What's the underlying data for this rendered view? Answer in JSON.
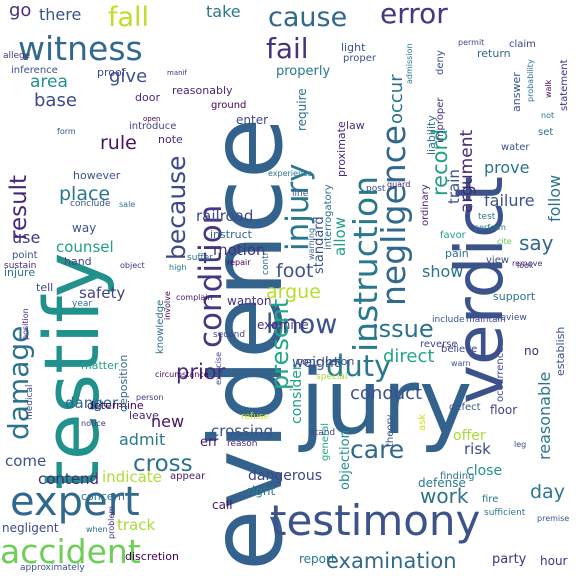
{
  "words": [
    {
      "text": "evidence",
      "color": "#33638d"
    },
    {
      "text": "jury",
      "color": "#33638d"
    },
    {
      "text": "testify",
      "color": "#21918c"
    },
    {
      "text": "verdict",
      "color": "#3b528b"
    },
    {
      "text": "testimony",
      "color": "#3b528b"
    },
    {
      "text": "expert",
      "color": "#31688e"
    },
    {
      "text": "accident",
      "color": "#6ece58"
    },
    {
      "text": "witness",
      "color": "#31688e"
    },
    {
      "text": "instruction",
      "color": "#2a788e"
    },
    {
      "text": "negligence",
      "color": "#31688e"
    },
    {
      "text": "condition",
      "color": "#453781"
    },
    {
      "text": "injury",
      "color": "#2a788e"
    },
    {
      "text": "damage",
      "color": "#2c728e"
    },
    {
      "text": "duty",
      "color": "#2a788e"
    },
    {
      "text": "error",
      "color": "#453781"
    },
    {
      "text": "fail",
      "color": "#46327e"
    },
    {
      "text": "cause",
      "color": "#31688e"
    },
    {
      "text": "fall",
      "color": "#bddf26"
    },
    {
      "text": "know",
      "color": "#3b528b"
    },
    {
      "text": "because",
      "color": "#3e4989"
    },
    {
      "text": "result",
      "color": "#482878"
    },
    {
      "text": "present",
      "color": "#22a884"
    },
    {
      "text": "care",
      "color": "#31688e"
    },
    {
      "text": "cross",
      "color": "#2c728e"
    },
    {
      "text": "issue",
      "color": "#2c728e"
    },
    {
      "text": "examination",
      "color": "#31688e"
    },
    {
      "text": "record",
      "color": "#1fa187"
    },
    {
      "text": "occur",
      "color": "#2c728e"
    },
    {
      "text": "argument",
      "color": "#482878"
    },
    {
      "text": "reasonable",
      "color": "#2a788e"
    },
    {
      "text": "foot",
      "color": "#3b528b"
    },
    {
      "text": "argue",
      "color": "#b5de2b"
    },
    {
      "text": "direct",
      "color": "#22a884"
    },
    {
      "text": "conduct",
      "color": "#3b528b"
    },
    {
      "text": "prior",
      "color": "#482878"
    },
    {
      "text": "work",
      "color": "#2c728e"
    },
    {
      "text": "day",
      "color": "#2a788e"
    },
    {
      "text": "say",
      "color": "#31688e"
    },
    {
      "text": "give",
      "color": "#3b528b"
    },
    {
      "text": "rule",
      "color": "#471365"
    },
    {
      "text": "place",
      "color": "#2a788e"
    },
    {
      "text": "base",
      "color": "#3e4989"
    },
    {
      "text": "area",
      "color": "#21918c"
    },
    {
      "text": "there",
      "color": "#3b528b"
    },
    {
      "text": "go",
      "color": "#46327e"
    },
    {
      "text": "take",
      "color": "#2a788e"
    },
    {
      "text": "show",
      "color": "#2c728e"
    },
    {
      "text": "follow",
      "color": "#2c728e"
    },
    {
      "text": "failure",
      "color": "#3b528b"
    },
    {
      "text": "prove",
      "color": "#2c728e"
    },
    {
      "text": "train",
      "color": "#3b528b"
    },
    {
      "text": "allow",
      "color": "#1fa187"
    },
    {
      "text": "safety",
      "color": "#414487"
    },
    {
      "text": "counsel",
      "color": "#1fa187"
    },
    {
      "text": "use",
      "color": "#453781"
    },
    {
      "text": "new",
      "color": "#471365"
    },
    {
      "text": "admit",
      "color": "#2a788e"
    },
    {
      "text": "motion",
      "color": "#46327e"
    },
    {
      "text": "railroad",
      "color": "#3e4989"
    },
    {
      "text": "danger",
      "color": "#31688e"
    },
    {
      "text": "risk",
      "color": "#3e4989"
    },
    {
      "text": "indicate",
      "color": "#addc30"
    },
    {
      "text": "contend",
      "color": "#482878"
    },
    {
      "text": "come",
      "color": "#3b528b"
    },
    {
      "text": "crossing",
      "color": "#3b528b"
    },
    {
      "text": "dangerous",
      "color": "#414487"
    },
    {
      "text": "negligent",
      "color": "#3e4989"
    },
    {
      "text": "track",
      "color": "#a5db36"
    },
    {
      "text": "defense",
      "color": "#2a788e"
    },
    {
      "text": "objection",
      "color": "#21918c"
    },
    {
      "text": "consider",
      "color": "#1fa187"
    },
    {
      "text": "standard",
      "color": "#3b528b"
    },
    {
      "text": "weight",
      "color": "#3b528b"
    },
    {
      "text": "properly",
      "color": "#2a788e"
    },
    {
      "text": "require",
      "color": "#2c728e"
    },
    {
      "text": "close",
      "color": "#21918c"
    },
    {
      "text": "offer",
      "color": "#a8db34"
    },
    {
      "text": "err",
      "color": "#481769"
    },
    {
      "text": "report",
      "color": "#2a788e"
    },
    {
      "text": "party",
      "color": "#46327e"
    },
    {
      "text": "hour",
      "color": "#46327e"
    },
    {
      "text": "discretion",
      "color": "#440154"
    },
    {
      "text": "approximately",
      "color": "#3b528b"
    },
    {
      "text": "call",
      "color": "#471365"
    },
    {
      "text": "right",
      "color": "#2a788e"
    },
    {
      "text": "general",
      "color": "#22a884"
    },
    {
      "text": "appear",
      "color": "#481f70"
    },
    {
      "text": "concern",
      "color": "#2c728e"
    },
    {
      "text": "determine",
      "color": "#440154"
    },
    {
      "text": "leave",
      "color": "#482878"
    },
    {
      "text": "matter",
      "color": "#1fa187"
    },
    {
      "text": "deposition",
      "color": "#31688e"
    },
    {
      "text": "conclusion",
      "color": "#3e4989"
    },
    {
      "text": "examine",
      "color": "#46327e"
    },
    {
      "text": "second",
      "color": "#3e4989"
    },
    {
      "text": "circumstance",
      "color": "#440154"
    },
    {
      "text": "reason",
      "color": "#482878"
    },
    {
      "text": "stand",
      "color": "#414487"
    },
    {
      "text": "refuse",
      "color": "#d8e219"
    },
    {
      "text": "special",
      "color": "#a0da39"
    },
    {
      "text": "theory",
      "color": "#3b528b"
    },
    {
      "text": "ask",
      "color": "#d0e11c"
    },
    {
      "text": "floor",
      "color": "#414487"
    },
    {
      "text": "defect",
      "color": "#3b528b"
    },
    {
      "text": "believe",
      "color": "#3e4989"
    },
    {
      "text": "reverse",
      "color": "#414487"
    },
    {
      "text": "occurrence",
      "color": "#3e4989"
    },
    {
      "text": "establish",
      "color": "#3b528b"
    },
    {
      "text": "support",
      "color": "#2c728e"
    },
    {
      "text": "review",
      "color": "#3b528b"
    },
    {
      "text": "sufficient",
      "color": "#2a788e"
    },
    {
      "text": "fire",
      "color": "#2a788e"
    },
    {
      "text": "finding",
      "color": "#2c728e"
    },
    {
      "text": "leg",
      "color": "#3e4989"
    },
    {
      "text": "pain",
      "color": "#2c728e"
    },
    {
      "text": "favor",
      "color": "#1fa187"
    },
    {
      "text": "view",
      "color": "#3e4989"
    },
    {
      "text": "test",
      "color": "#2a788e"
    },
    {
      "text": "perform",
      "color": "#2a788e"
    },
    {
      "text": "cite",
      "color": "#5ec962"
    },
    {
      "text": "remove",
      "color": "#46327e"
    },
    {
      "text": "look",
      "color": "#482878"
    },
    {
      "text": "water",
      "color": "#3b528b"
    },
    {
      "text": "set",
      "color": "#2c728e"
    },
    {
      "text": "claim",
      "color": "#414487"
    },
    {
      "text": "return",
      "color": "#31688e"
    },
    {
      "text": "permit",
      "color": "#3e4989"
    },
    {
      "text": "statement",
      "color": "#46327e"
    },
    {
      "text": "answer",
      "color": "#3b528b"
    },
    {
      "text": "liability",
      "color": "#2c728e"
    },
    {
      "text": "ordinary",
      "color": "#482878"
    },
    {
      "text": "deny",
      "color": "#3b528b"
    },
    {
      "text": "improper",
      "color": "#46327e"
    },
    {
      "text": "admission",
      "color": "#2a788e"
    },
    {
      "text": "interrogatory",
      "color": "#2c728e"
    },
    {
      "text": "proximate",
      "color": "#482878"
    },
    {
      "text": "guard",
      "color": "#481769"
    },
    {
      "text": "law",
      "color": "#46327e"
    },
    {
      "text": "light",
      "color": "#3b528b"
    },
    {
      "text": "proper",
      "color": "#3b528b"
    },
    {
      "text": "ground",
      "color": "#440154"
    },
    {
      "text": "enter",
      "color": "#3e4989"
    },
    {
      "text": "reasonably",
      "color": "#482878"
    },
    {
      "text": "door",
      "color": "#482878"
    },
    {
      "text": "proof",
      "color": "#3e4989"
    },
    {
      "text": "inference",
      "color": "#3b528b"
    },
    {
      "text": "allege",
      "color": "#46327e"
    },
    {
      "text": "note",
      "color": "#482878"
    },
    {
      "text": "introduce",
      "color": "#414487"
    },
    {
      "text": "however",
      "color": "#3b528b"
    },
    {
      "text": "conclude",
      "color": "#3b528b"
    },
    {
      "text": "sale",
      "color": "#2c728e"
    },
    {
      "text": "way",
      "color": "#3b528b"
    },
    {
      "text": "instruct",
      "color": "#31688e"
    },
    {
      "text": "suffer",
      "color": "#2c728e"
    },
    {
      "text": "high",
      "color": "#2a788e"
    },
    {
      "text": "repair",
      "color": "#440154"
    },
    {
      "text": "control",
      "color": "#31688e"
    },
    {
      "text": "warning",
      "color": "#31688e"
    },
    {
      "text": "line",
      "color": "#3b528b"
    },
    {
      "text": "post",
      "color": "#3e4989"
    },
    {
      "text": "experience",
      "color": "#2c728e"
    },
    {
      "text": "wanton",
      "color": "#46327e"
    },
    {
      "text": "complain",
      "color": "#481769"
    },
    {
      "text": "hand",
      "color": "#3e4989"
    },
    {
      "text": "point",
      "color": "#3b528b"
    },
    {
      "text": "injure",
      "color": "#2c728e"
    },
    {
      "text": "sustain",
      "color": "#482878"
    },
    {
      "text": "tell",
      "color": "#414487"
    },
    {
      "text": "year",
      "color": "#2c728e"
    },
    {
      "text": "medical",
      "color": "#3b528b"
    },
    {
      "text": "position",
      "color": "#482878"
    },
    {
      "text": "exercise",
      "color": "#414487"
    },
    {
      "text": "knowledge",
      "color": "#2c728e"
    },
    {
      "text": "involve",
      "color": "#440154"
    },
    {
      "text": "person",
      "color": "#46327e"
    },
    {
      "text": "notice",
      "color": "#46327e"
    },
    {
      "text": "when",
      "color": "#2c728e"
    },
    {
      "text": "problem",
      "color": "#46327e"
    },
    {
      "text": "premise",
      "color": "#3b528b"
    },
    {
      "text": "include",
      "color": "#3b528b"
    },
    {
      "text": "maintain",
      "color": "#3e4989"
    },
    {
      "text": "warn",
      "color": "#3b528b"
    },
    {
      "text": "open",
      "color": "#440154"
    },
    {
      "text": "manif",
      "color": "#46327e"
    },
    {
      "text": "form",
      "color": "#3b528b"
    },
    {
      "text": "probability",
      "color": "#2c728e"
    },
    {
      "text": "not",
      "color": "#2c728e"
    },
    {
      "text": "walk",
      "color": "#440154"
    },
    {
      "text": "object",
      "color": "#46327e"
    },
    {
      "text": "no",
      "color": "#482878"
    }
  ]
}
